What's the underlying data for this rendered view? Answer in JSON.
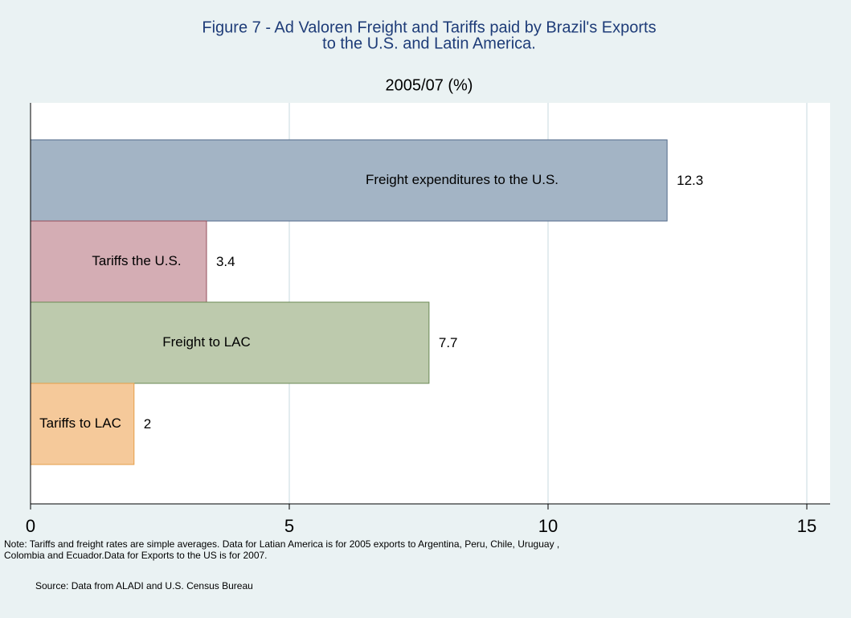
{
  "chart_data": {
    "type": "bar",
    "orientation": "horizontal",
    "title": [
      "Figure 7 - Ad Valoren Freight and Tariffs paid by Brazil's Exports",
      "to the U.S. and Latin America."
    ],
    "subtitle": "2005/07 (%)",
    "categories": [
      "Freight expenditures to the U.S.",
      "Tariffs the U.S.",
      "Freight to LAC",
      "Tariffs to LAC"
    ],
    "values": [
      12.3,
      3.4,
      7.7,
      2
    ],
    "colors": [
      "#a3b4c5",
      "#d4adb4",
      "#bdcaad",
      "#f5c99a"
    ],
    "xlim": [
      0,
      15.45
    ],
    "xticks": [
      0,
      5,
      10,
      15
    ],
    "grid": true,
    "note": [
      "Note: Tariffs and freight rates are simple averages. Data for Latian America is for 2005 exports to Argentina, Peru, Chile, Uruguay ,",
      "Colombia and Ecuador.Data for Exports to the US is for 2007."
    ],
    "source": "Source: Data from ALADI and U.S. Census Bureau"
  }
}
